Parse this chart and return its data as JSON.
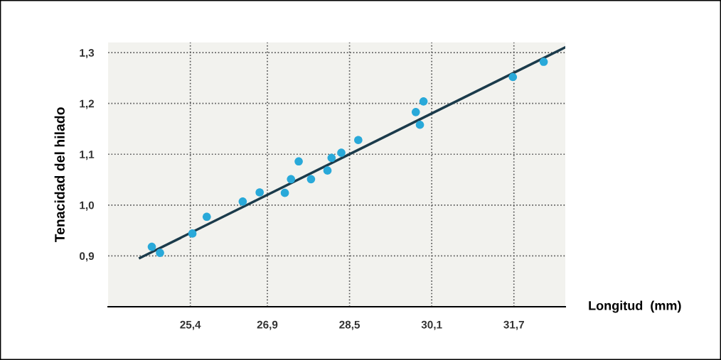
{
  "chart_data": {
    "type": "scatter",
    "xlabel": "Longitud  (mm)",
    "ylabel": "Tenacidad del hilado",
    "xlim": [
      23.8,
      32.7
    ],
    "xticks": [
      {
        "value": 25.4,
        "label": "25,4"
      },
      {
        "value": 26.9,
        "label": "26,9"
      },
      {
        "value": 28.5,
        "label": "28,5"
      },
      {
        "value": 30.1,
        "label": "30,1"
      },
      {
        "value": 31.7,
        "label": "31,7"
      }
    ],
    "ylim": [
      0.8,
      1.32
    ],
    "yticks": [
      {
        "value": 0.9,
        "label": "0,9"
      },
      {
        "value": 1.0,
        "label": "1,0"
      },
      {
        "value": 1.1,
        "label": "1,1"
      },
      {
        "value": 1.2,
        "label": "1,2"
      },
      {
        "value": 1.3,
        "label": "1,3"
      }
    ],
    "grid": true,
    "series": [
      {
        "marker": "circle",
        "color": "#29a9d9",
        "x": [
          24.65,
          24.81,
          25.44,
          25.72,
          26.42,
          26.75,
          27.24,
          27.36,
          27.51,
          27.75,
          28.07,
          28.15,
          28.34,
          28.67,
          29.79,
          29.87,
          29.94,
          31.68,
          32.28
        ],
        "values": [
          0.918,
          0.906,
          0.944,
          0.977,
          1.007,
          1.025,
          1.024,
          1.051,
          1.086,
          1.051,
          1.068,
          1.093,
          1.103,
          1.128,
          1.183,
          1.158,
          1.204,
          1.252,
          1.282
        ]
      },
      {
        "type": "line",
        "color": "#1b3b4b",
        "x": [
          24.42,
          32.69
        ],
        "values": [
          0.896,
          1.31
        ]
      }
    ]
  }
}
